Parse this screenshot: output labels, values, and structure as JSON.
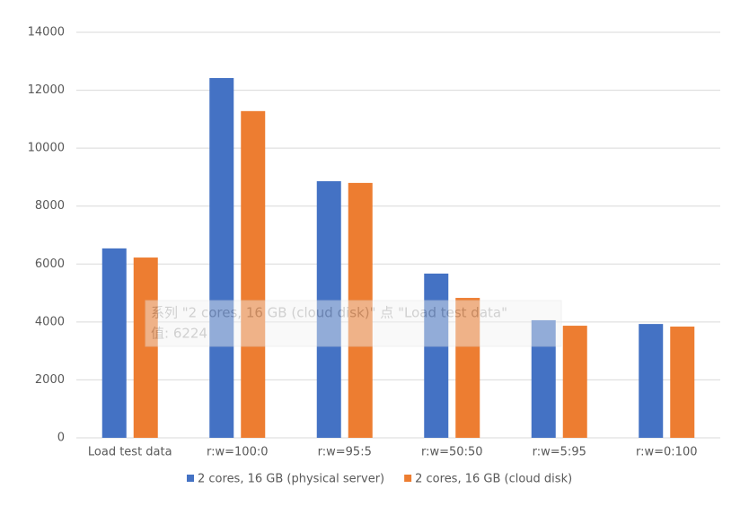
{
  "chart_data": {
    "type": "bar",
    "categories": [
      "Load test data",
      "r:w=100:0",
      "r:w=95:5",
      "r:w=50:50",
      "r:w=5:95",
      "r:w=0:100"
    ],
    "series": [
      {
        "name": "2 cores, 16 GB (physical server)",
        "color": "#4472c4",
        "values": [
          6540,
          12420,
          8860,
          5670,
          4060,
          3930
        ]
      },
      {
        "name": "2 cores, 16 GB (cloud disk)",
        "color": "#ed7d31",
        "values": [
          6224,
          11280,
          8800,
          4830,
          3870,
          3840
        ]
      }
    ],
    "ylim": [
      0,
      14000
    ],
    "yticks": [
      0,
      2000,
      4000,
      6000,
      8000,
      10000,
      12000,
      14000
    ],
    "grid": true,
    "legend": "bottom",
    "tooltip": {
      "line1": "系列 \"2 cores, 16 GB (cloud disk)\" 点 \"Load test data\"",
      "line2": "值: 6224"
    }
  }
}
